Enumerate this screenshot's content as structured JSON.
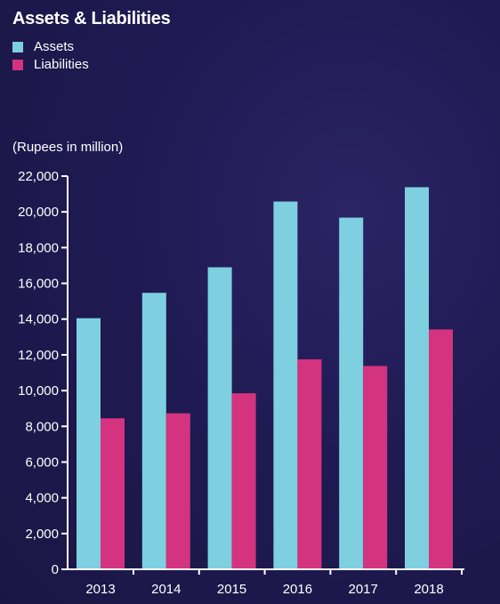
{
  "chart_data": {
    "type": "bar",
    "title": "Assets & Liabilities",
    "unit_label": "(Rupees in million)",
    "categories": [
      "2013",
      "2014",
      "2015",
      "2016",
      "2017",
      "2018"
    ],
    "series": [
      {
        "name": "Assets",
        "color": "#7ecfe0",
        "values": [
          14050,
          15470,
          16900,
          20580,
          19680,
          21380
        ]
      },
      {
        "name": "Liabilities",
        "color": "#d4337f",
        "values": [
          8450,
          8730,
          9850,
          11750,
          11380,
          13420
        ]
      }
    ],
    "ylim": [
      0,
      22000
    ],
    "yticks": [
      "0",
      "2,000",
      "4,000",
      "6,000",
      "8,000",
      "10,000",
      "12,000",
      "14,000",
      "16,000",
      "18,000",
      "20,000",
      "22,000"
    ],
    "ytick_values": [
      0,
      2000,
      4000,
      6000,
      8000,
      10000,
      12000,
      14000,
      16000,
      18000,
      20000,
      22000
    ],
    "legend_position": "top-left",
    "grid": false
  }
}
